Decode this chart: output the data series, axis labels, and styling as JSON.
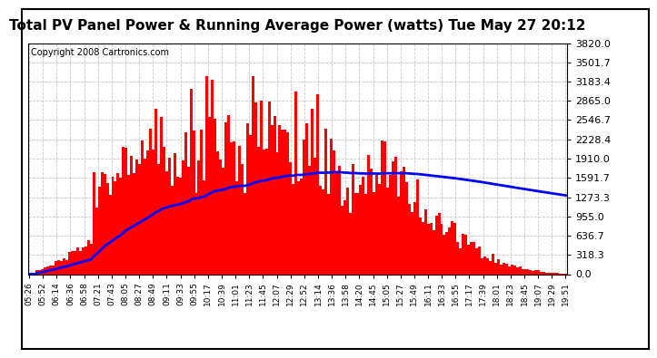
{
  "title": "Total PV Panel Power & Running Average Power (watts) Tue May 27 20:12",
  "copyright": "Copyright 2008 Cartronics.com",
  "yticks": [
    0.0,
    318.3,
    636.7,
    955.0,
    1273.3,
    1591.7,
    1910.0,
    2228.4,
    2546.7,
    2865.0,
    3183.4,
    3501.7,
    3820.0
  ],
  "ymax": 3820.0,
  "ymin": 0.0,
  "bar_color": "#FF0000",
  "avg_color": "#0000FF",
  "background_color": "#FFFFFF",
  "grid_color": "#BBBBBB",
  "title_fontsize": 11,
  "copyright_fontsize": 7,
  "xtick_labels": [
    "05:26",
    "05:52",
    "06:14",
    "06:36",
    "06:58",
    "07:21",
    "07:43",
    "08:05",
    "08:27",
    "08:49",
    "09:11",
    "09:33",
    "09:55",
    "10:17",
    "10:39",
    "11:01",
    "11:23",
    "11:45",
    "12:07",
    "12:29",
    "12:52",
    "13:14",
    "13:36",
    "13:58",
    "14:20",
    "14:45",
    "15:05",
    "15:27",
    "15:49",
    "16:11",
    "16:33",
    "16:55",
    "17:17",
    "17:39",
    "18:01",
    "18:23",
    "18:45",
    "19:07",
    "19:29",
    "19:51"
  ],
  "num_points": 200
}
